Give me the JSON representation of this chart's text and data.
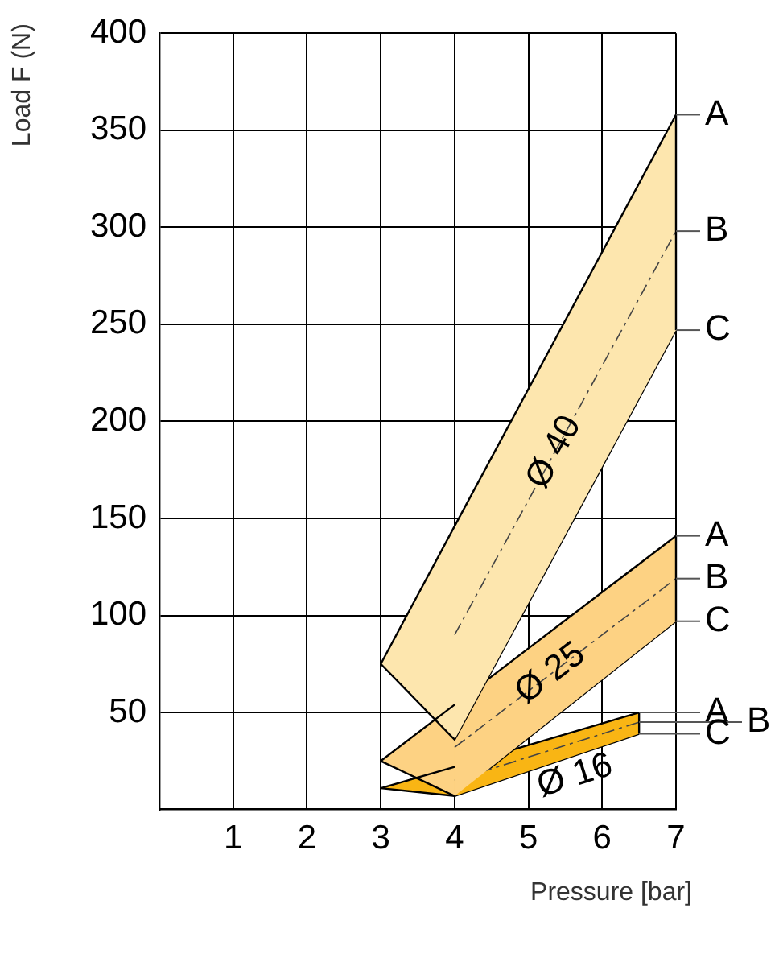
{
  "chart_data": {
    "type": "area",
    "xlabel": "Pressure [bar]",
    "ylabel": "Load F (N)",
    "xlim": [
      0,
      7
    ],
    "xticks": [
      1,
      2,
      3,
      4,
      5,
      6,
      7
    ],
    "ylim": [
      0,
      400
    ],
    "yticks": [
      50,
      100,
      150,
      200,
      250,
      300,
      350,
      400
    ],
    "grid": true,
    "legend": false,
    "line_style": "dashed",
    "series": [
      {
        "color": "#fde6ae",
        "x": [
          3,
          4,
          7
        ],
        "values": [
          null,
          90,
          298
        ],
        "lower": [
          75,
          36,
          247
        ],
        "upper": [
          75,
          146,
          358
        ]
      },
      {
        "color": "#fdd283",
        "x": [
          3,
          4,
          7
        ],
        "values": [
          null,
          32,
          119
        ],
        "lower": [
          25,
          7,
          97
        ],
        "upper": [
          25,
          54,
          141
        ]
      },
      {
        "color": "#f9b514",
        "x": [
          3,
          4,
          6.5
        ],
        "values": [
          null,
          15,
          45
        ],
        "lower": [
          11,
          7,
          39
        ],
        "upper": [
          11,
          22,
          50
        ]
      }
    ],
    "annotations": [
      {
        "text": "Ø 40",
        "x": 5.35,
        "y": 184
      },
      {
        "text": "Ø 25",
        "x": 5.3,
        "y": 70
      },
      {
        "text": "Ø 16",
        "x": 5.5,
        "y": 33
      },
      {
        "text": "A",
        "x": 7,
        "y": 358
      },
      {
        "text": "B",
        "x": 7,
        "y": 298
      },
      {
        "text": "C",
        "x": 7,
        "y": 247
      },
      {
        "text": "A",
        "x": 7,
        "y": 141
      },
      {
        "text": "B",
        "x": 7,
        "y": 119
      },
      {
        "text": "C",
        "x": 7,
        "y": 97
      },
      {
        "text": "A",
        "x": 6.5,
        "y": 50
      },
      {
        "text": "B",
        "x": 6.5,
        "y": 45
      },
      {
        "text": "C",
        "x": 6.5,
        "y": 39
      }
    ]
  }
}
